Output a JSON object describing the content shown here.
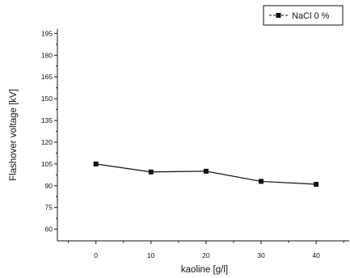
{
  "chart_data": {
    "type": "line",
    "xlabel": "kaoline [g/l]",
    "ylabel": "Flashover voltage [kV]",
    "xlim": [
      -7,
      46
    ],
    "ylim": [
      52,
      198
    ],
    "xticks": [
      0,
      10,
      20,
      30,
      40
    ],
    "yticks": [
      60,
      75,
      90,
      105,
      120,
      135,
      150,
      165,
      180,
      195
    ],
    "grid": false,
    "legend_position": "top-right",
    "series": [
      {
        "name": "NaCl 0 %",
        "marker": "square",
        "line_style": "solid",
        "color": "#111111",
        "x": [
          0,
          10,
          20,
          30,
          40
        ],
        "y": [
          105,
          99.5,
          100,
          93,
          91
        ]
      }
    ]
  }
}
